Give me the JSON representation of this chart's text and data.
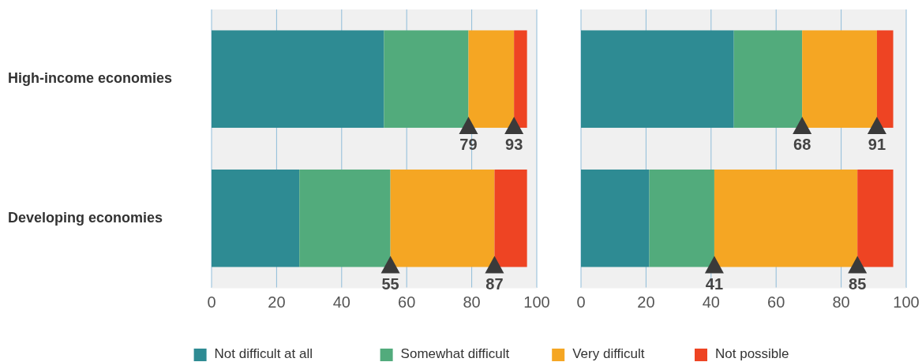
{
  "chart_data": [
    {
      "type": "bar",
      "orientation": "horizontal",
      "stacked": true,
      "categories": [
        "High-income economies",
        "Developing economies"
      ],
      "series": [
        {
          "name": "Not difficult at all",
          "color": "#2e8b93",
          "values": [
            53,
            27
          ]
        },
        {
          "name": "Somewhat difficult",
          "color": "#52ab7c",
          "values": [
            26,
            28
          ]
        },
        {
          "name": "Very difficult",
          "color": "#f5a623",
          "values": [
            14,
            32
          ]
        },
        {
          "name": "Not possible",
          "color": "#ee4423",
          "values": [
            4,
            10
          ]
        }
      ],
      "xlim": [
        0,
        100
      ],
      "xticks": [
        0,
        20,
        40,
        60,
        80,
        100
      ],
      "grid": "x",
      "legend": "bottom",
      "annotations": [
        "79",
        "93",
        "55",
        "87"
      ]
    },
    {
      "type": "bar",
      "orientation": "horizontal",
      "stacked": true,
      "categories": [
        null,
        null
      ],
      "tick_labels": "x",
      "series": [
        {
          "color": "#2e8b93",
          "values": [
            47,
            21
          ]
        },
        {
          "color": "#52ab7c",
          "values": [
            21,
            20
          ]
        },
        {
          "color": "#f5a623",
          "values": [
            23,
            44
          ]
        },
        {
          "color": "#ee4423",
          "values": [
            5,
            11
          ]
        }
      ],
      "xlim": [
        0,
        100
      ],
      "xticks": [
        0,
        20,
        40,
        60,
        80,
        100
      ],
      "grid": "x",
      "annotations": [
        "68",
        "91",
        "41",
        "85"
      ]
    }
  ]
}
